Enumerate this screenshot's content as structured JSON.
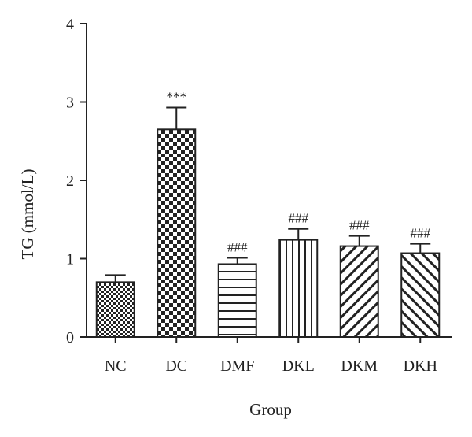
{
  "chart_data": {
    "type": "bar",
    "title": "",
    "xlabel": "Group",
    "ylabel": "TG (mmol/L)",
    "ylim": [
      0,
      4
    ],
    "yticks": [
      0,
      1,
      2,
      3,
      4
    ],
    "grid": false,
    "categories": [
      "NC",
      "DC",
      "DMF",
      "DKL",
      "DKM",
      "DKH"
    ],
    "values": [
      0.7,
      2.65,
      0.93,
      1.24,
      1.16,
      1.07
    ],
    "errors": [
      0.09,
      0.28,
      0.08,
      0.14,
      0.13,
      0.12
    ],
    "annotations": [
      "",
      "***",
      "###",
      "###",
      "###",
      "###"
    ],
    "patterns": [
      "fine-checker",
      "coarse-checker",
      "horizontal-lines",
      "vertical-lines",
      "diagonal-up",
      "diagonal-down"
    ],
    "colors": {
      "bar_fill": "#ffffff",
      "pattern": "#222222",
      "axis": "#222222"
    }
  }
}
